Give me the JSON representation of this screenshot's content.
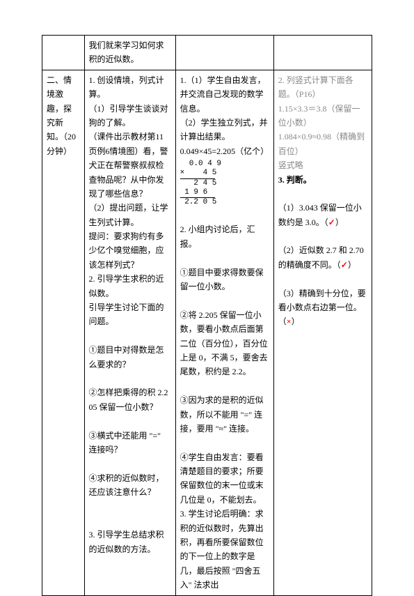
{
  "row1": {
    "col2": "我们就来学习如何求积的近似数。"
  },
  "row2": {
    "col1": "二、情境激趣，探究新知。（20 分钟）",
    "col2_p1": "1. 创设情境，列式计算。",
    "col2_p2": "（1）引导学生谈谈对狗的了解。",
    "col2_p3": "（课件出示教材第11页例6情境图）看，警犬正在帮警察叔叔检查物品呢？从中你发现了哪些信息？",
    "col2_p4": "（2）提出问题，让学生列式计算。",
    "col2_p5": "提问：要求狗约有多少亿个嗅觉细胞，应该怎样列式？",
    "col2_p6": "2. 引导学生求积的近似数。",
    "col2_p7": "引导学生讨论下面的问题。",
    "col2_q1": "①题目中对得数是怎么要求的？",
    "col2_q2": "②怎样把乘得的积 2.205 保留一位小数？",
    "col2_q3": "③横式中还能用 \"=\" 连接吗？",
    "col2_q4": "④求积的近似数时，还应该注意什么？",
    "col2_p8": "3. 引导学生总结求积的近似数的方法。",
    "col3_p1": "1.（1）学生自由发言，并交流自己发现的数学信息。",
    "col3_p2": "（2）学生独立列式，并计算出结果。",
    "col3_eq": "0.049×45=2.205（亿个）",
    "calc_l1": "  0.0 4 9",
    "calc_l2": "×    4 5",
    "calc_l3": "   2 4 5",
    "calc_l4": " 1 9 6",
    "calc_l5": " 2.2 0 5",
    "col3_p3": "2. 小组内讨论后，汇报。",
    "col3_a1": "①题目中要求得数要保留一位小数。",
    "col3_a2": "②将 2.205 保留一位小数，要看小数点后面第二位（百分位），百分位上是 0，不满 5，要舍去尾数，积约是 2.2。",
    "col3_a3": "③因为求的是积的近似数，所以不能用 \"=\" 连接，要用 \"≈\" 连接。",
    "col3_a4": "④学生自由发言：要看清楚题目的要求；所要保留数位的末一位或末几位是 0，不能划去。",
    "col3_p4": "3. 学生讨论后明确：求积的近似数时，先算出积，再看所要保留数位的下一位上的数字是几，最后按照 \"四舍五入\" 法求出",
    "col4_t1": "2. 列竖式计算下面各题。（P16）",
    "col4_e1": "1.15×3.3＝3.8（保留一位小数）",
    "col4_e2": "1.084×0.9≈0.98（精确到百位）",
    "col4_omit": "竖式略",
    "col4_t2": "3. 判断。",
    "col4_j1a": "（1）3.043 保留一位小数约是 3.0。（",
    "col4_j1b": "）",
    "col4_j2a": "（2）近似数 2.7 和 2.70 的精确度不同。（",
    "col4_j2b": "）",
    "col4_j3a": "（3）精确到十分位，要看小数点右边第一位。（",
    "col4_j3b": "）",
    "mark_check": "✓",
    "mark_cross": "×"
  }
}
